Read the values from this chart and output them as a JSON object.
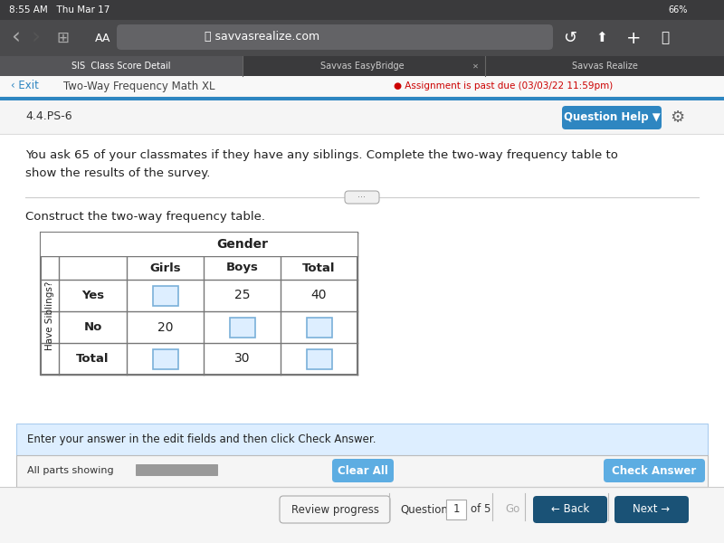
{
  "title_bar_text": "4.4.PS-6",
  "question_help_text": "Question Help",
  "question_text_line1": "You ask 65 of your classmates if they have any siblings. Complete the two-way frequency table to",
  "question_text_line2": "show the results of the survey.",
  "construct_label": "Construct the two-way frequency table.",
  "col_header_span": "Gender",
  "col_headers": [
    "Girls",
    "Boys",
    "Total"
  ],
  "row_header_span": "Have Siblings?",
  "row_labels": [
    "Yes",
    "No",
    "Total"
  ],
  "known_values": {
    "yes_boys": "25",
    "yes_total": "40",
    "no_girls": "20",
    "total_boys": "30"
  },
  "bg_color": "#ffffff",
  "table_border_color": "#777777",
  "input_box_color": "#ddeeff",
  "input_box_border": "#7ab0d9",
  "assignment_color": "#cc0000",
  "question_help_btn_color": "#2e86c1",
  "bottom_nav_btn_color": "#1a5276",
  "clear_all_btn_color": "#5dade2",
  "check_answer_btn_color": "#5dade2",
  "time_text": "8:55 AM   Thu Mar 17",
  "url_text": "savvasrealize.com",
  "tab1": "SIS  Class Score Detail",
  "tab2": "Savvas EasyBridge",
  "tab3": "Savvas Realize",
  "exit_text": "‹ Exit",
  "breadcrumb_text": "Two-Way Frequency Math XL",
  "assignment_due_text": "Assignment is past due (03/03/22 11:59pm)",
  "bottom_instruction": "Enter your answer in the edit fields and then click Check Answer.",
  "all_parts_text": "All parts showing",
  "clear_all_text": "Clear All",
  "check_answer_text": "Check Answer",
  "review_progress_text": "Review progress",
  "question_label": "Question",
  "question_num": "1",
  "of_text": "of 5",
  "go_text": "Go",
  "back_text": "← Back",
  "next_text": "Next →"
}
